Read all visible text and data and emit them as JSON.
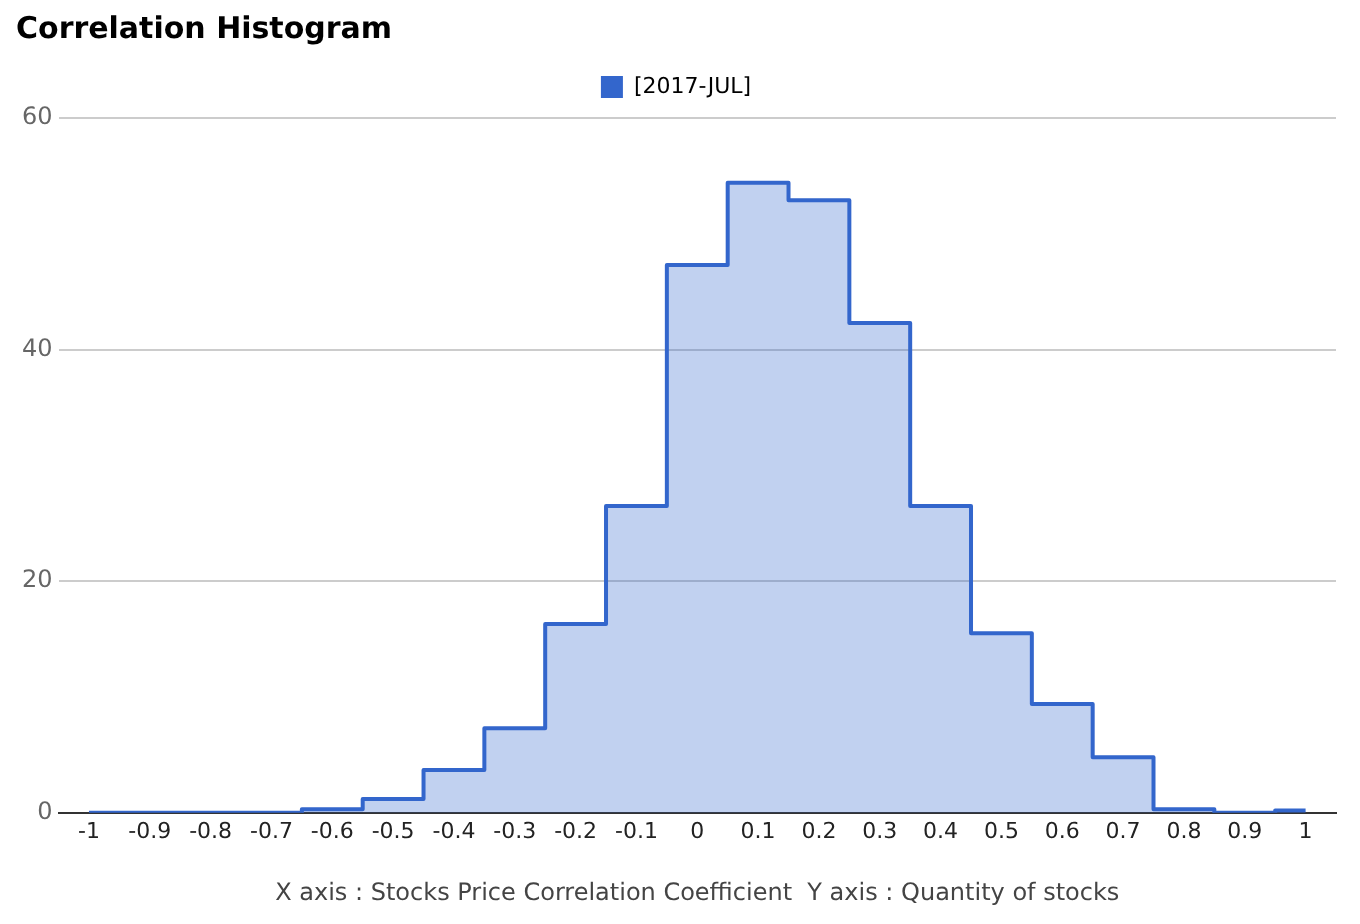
{
  "chart_data": {
    "type": "step",
    "title": "Correlation Histogram",
    "xlabel": "X axis : Stocks Price Correlation Coefficient  Y axis : Quantity of stocks",
    "categories": [
      "-1",
      "-0.9",
      "-0.8",
      "-0.7",
      "-0.6",
      "-0.5",
      "-0.4",
      "-0.3",
      "-0.2",
      "-0.1",
      "0",
      "0.1",
      "0.2",
      "0.3",
      "0.4",
      "0.5",
      "0.6",
      "0.7",
      "0.8",
      "0.9",
      "1"
    ],
    "series": [
      {
        "name": "[2017-JUL]",
        "color": "#3366cc",
        "type": "area",
        "values": [
          0,
          0,
          0,
          0,
          0.3,
          1.2,
          3.7,
          7.3,
          16.3,
          26.5,
          47.3,
          54.4,
          52.9,
          42.3,
          26.5,
          15.5,
          9.4,
          4.8,
          0.3,
          0,
          0.2
        ]
      }
    ],
    "ylim": [
      0,
      60
    ],
    "yticks": [
      0,
      20,
      40,
      60
    ],
    "grid": "y",
    "legend": "top"
  }
}
